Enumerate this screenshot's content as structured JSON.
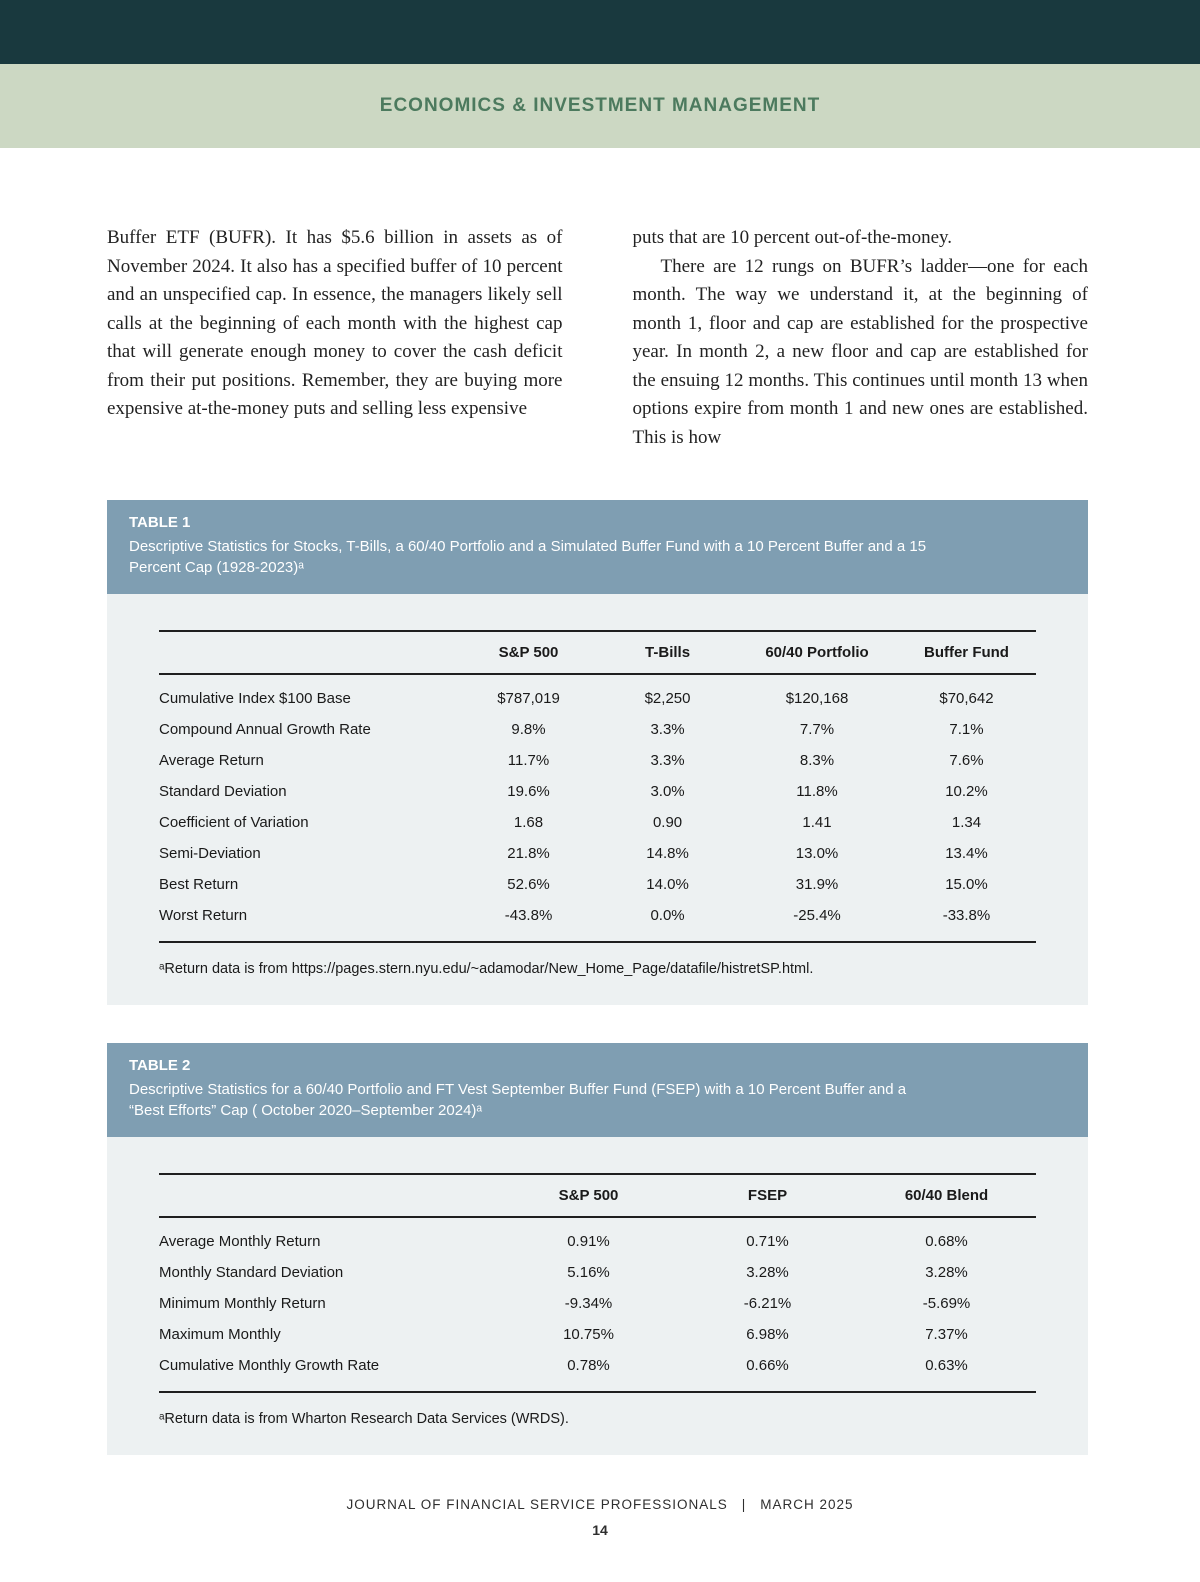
{
  "header": {
    "band_title": "ECONOMICS & INVESTMENT MANAGEMENT"
  },
  "article": {
    "left_column": "Buffer ETF (BUFR). It has $5.6 billion in assets as of November 2024. It also has a specified buffer of 10 percent and an unspecified cap. In essence, the managers likely sell calls at the beginning of each month with the highest cap that will generate enough money to cover the cash deficit from their put positions. Remember, they are buying more expensive at-the-money puts and selling less expensive",
    "right_column_p1": "puts that are 10 percent out-of-the-money.",
    "right_column_p2": "There are 12 rungs on BUFR’s ladder—one for each month. The way we understand it, at the beginning of month 1, floor and cap are established for the prospective year. In month 2, a new floor and cap are established for the ensuing 12 months. This continues until month 13 when options expire from month 1 and new ones are established. This is how"
  },
  "table1": {
    "label": "TABLE 1",
    "caption": "Descriptive Statistics for Stocks, T-Bills, a 60/40 Portfolio and a Simulated Buffer Fund with a 10 Percent Buffer and a 15 Percent Cap (1928-2023)ᵃ",
    "columns": [
      "S&P 500",
      "T-Bills",
      "60/40 Portfolio",
      "Buffer Fund"
    ],
    "rows": [
      {
        "label": "Cumulative Index $100 Base",
        "values": [
          "$787,019",
          "$2,250",
          "$120,168",
          "$70,642"
        ]
      },
      {
        "label": "Compound Annual Growth Rate",
        "values": [
          "9.8%",
          "3.3%",
          "7.7%",
          "7.1%"
        ]
      },
      {
        "label": "Average Return",
        "values": [
          "11.7%",
          "3.3%",
          "8.3%",
          "7.6%"
        ]
      },
      {
        "label": "Standard Deviation",
        "values": [
          "19.6%",
          "3.0%",
          "11.8%",
          "10.2%"
        ]
      },
      {
        "label": "Coefficient of Variation",
        "values": [
          "1.68",
          "0.90",
          "1.41",
          "1.34"
        ]
      },
      {
        "label": "Semi-Deviation",
        "values": [
          "21.8%",
          "14.8%",
          "13.0%",
          "13.4%"
        ]
      },
      {
        "label": "Best Return",
        "values": [
          "52.6%",
          "14.0%",
          "31.9%",
          "15.0%"
        ]
      },
      {
        "label": "Worst Return",
        "values": [
          "-43.8%",
          "0.0%",
          "-25.4%",
          "-33.8%"
        ]
      }
    ],
    "footnote": "ᵃReturn data is from https://pages.stern.nyu.edu/~adamodar/New_Home_Page/datafile/histretSP.html."
  },
  "table2": {
    "label": "TABLE 2",
    "caption": "Descriptive Statistics for a 60/40 Portfolio and FT Vest September Buffer Fund (FSEP) with a 10 Percent Buffer and a “Best Efforts” Cap ( October 2020–September 2024)ᵃ",
    "columns": [
      "S&P 500",
      "FSEP",
      "60/40 Blend"
    ],
    "rows": [
      {
        "label": "Average Monthly Return",
        "values": [
          "0.91%",
          "0.71%",
          "0.68%"
        ]
      },
      {
        "label": "Monthly Standard Deviation",
        "values": [
          "5.16%",
          "3.28%",
          "3.28%"
        ]
      },
      {
        "label": "Minimum Monthly Return",
        "values": [
          "-9.34%",
          "-6.21%",
          "-5.69%"
        ]
      },
      {
        "label": "Maximum Monthly",
        "values": [
          "10.75%",
          "6.98%",
          "7.37%"
        ]
      },
      {
        "label": "Cumulative Monthly Growth Rate",
        "values": [
          "0.78%",
          "0.66%",
          "0.63%"
        ]
      }
    ],
    "footnote": "ᵃReturn data is from Wharton Research Data Services (WRDS)."
  },
  "footer": {
    "journal": "JOURNAL OF FINANCIAL SERVICE PROFESSIONALS",
    "separator": "|",
    "date": "MARCH 2025",
    "page_number": "14"
  }
}
